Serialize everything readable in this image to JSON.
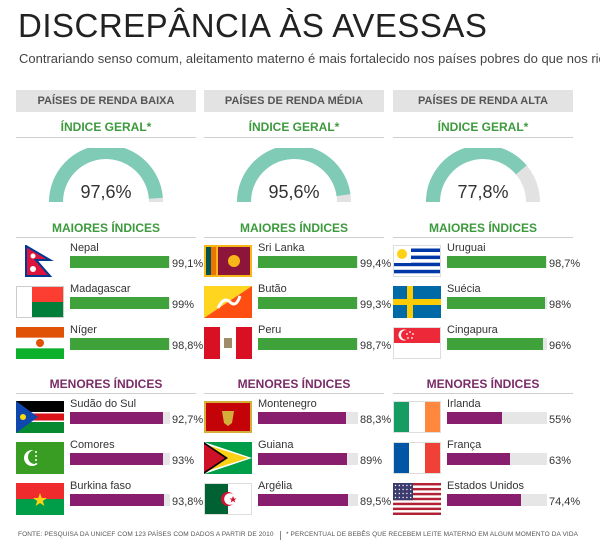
{
  "title": "DISCREPÂNCIA ÀS AVESSAS",
  "subtitle": "Contrariando senso comum, aleitamento materno é mais fortalecido nos países pobres do que nos ricos",
  "colors": {
    "green": "#3fa23a",
    "purple": "#8a1e6e",
    "gauge_fill": "#7fcbb5",
    "gauge_track": "#e2e2e2",
    "header_bg": "#e3e3e3"
  },
  "footer": {
    "source": "FONTE: PESQUISA DA UNICEF COM 123 PAÍSES COM DADOS A PARTIR DE 2010",
    "note": "* PERCENTUAL DE BEBÊS QUE RECEBEM LEITE MATERNO EM ALGUM MOMENTO DA VIDA"
  },
  "chart_data": [
    {
      "type": "bar",
      "group": "PAÍSES DE RENDA BAIXA",
      "overall_label": "ÍNDICE GERAL*",
      "overall_value": 97.6,
      "overall_text": "97,6%",
      "top_label": "MAIORES ÍNDICES",
      "bottom_label": "MENORES ÍNDICES",
      "top": [
        {
          "country": "Nepal",
          "value": 99.1,
          "text": "99,1%",
          "flag": "nepal"
        },
        {
          "country": "Madagascar",
          "value": 99,
          "text": "99%",
          "flag": "madagascar"
        },
        {
          "country": "Níger",
          "value": 98.8,
          "text": "98,8%",
          "flag": "niger"
        }
      ],
      "bottom": [
        {
          "country": "Sudão do Sul",
          "value": 92.7,
          "text": "92,7%",
          "flag": "south-sudan"
        },
        {
          "country": "Comores",
          "value": 93,
          "text": "93%",
          "flag": "comoros"
        },
        {
          "country": "Burkina faso",
          "value": 93.8,
          "text": "93,8%",
          "flag": "burkina-faso"
        }
      ]
    },
    {
      "type": "bar",
      "group": "PAÍSES DE RENDA MÉDIA",
      "overall_label": "ÍNDICE GERAL*",
      "overall_value": 95.6,
      "overall_text": "95,6%",
      "top_label": "MAIORES ÍNDICES",
      "bottom_label": "MENORES ÍNDICES",
      "top": [
        {
          "country": "Sri Lanka",
          "value": 99.4,
          "text": "99,4%",
          "flag": "sri-lanka"
        },
        {
          "country": "Butão",
          "value": 99.3,
          "text": "99,3%",
          "flag": "bhutan"
        },
        {
          "country": "Peru",
          "value": 98.7,
          "text": "98,7%",
          "flag": "peru"
        }
      ],
      "bottom": [
        {
          "country": "Montenegro",
          "value": 88.3,
          "text": "88,3%",
          "flag": "montenegro"
        },
        {
          "country": "Guiana",
          "value": 89,
          "text": "89%",
          "flag": "guyana"
        },
        {
          "country": "Argélia",
          "value": 89.5,
          "text": "89,5%",
          "flag": "algeria"
        }
      ]
    },
    {
      "type": "bar",
      "group": "PAÍSES DE RENDA ALTA",
      "overall_label": "ÍNDICE GERAL*",
      "overall_value": 77.8,
      "overall_text": "77,8%",
      "top_label": "MAIORES ÍNDICES",
      "bottom_label": "MENORES ÍNDICES",
      "top": [
        {
          "country": "Uruguai",
          "value": 98.7,
          "text": "98,7%",
          "flag": "uruguay"
        },
        {
          "country": "Suécia",
          "value": 98,
          "text": "98%",
          "flag": "sweden"
        },
        {
          "country": "Cingapura",
          "value": 96,
          "text": "96%",
          "flag": "singapore"
        }
      ],
      "bottom": [
        {
          "country": "Irlanda",
          "value": 55,
          "text": "55%",
          "flag": "ireland"
        },
        {
          "country": "França",
          "value": 63,
          "text": "63%",
          "flag": "france"
        },
        {
          "country": "Estados Unidos",
          "value": 74.4,
          "text": "74,4%",
          "flag": "usa"
        }
      ]
    }
  ]
}
